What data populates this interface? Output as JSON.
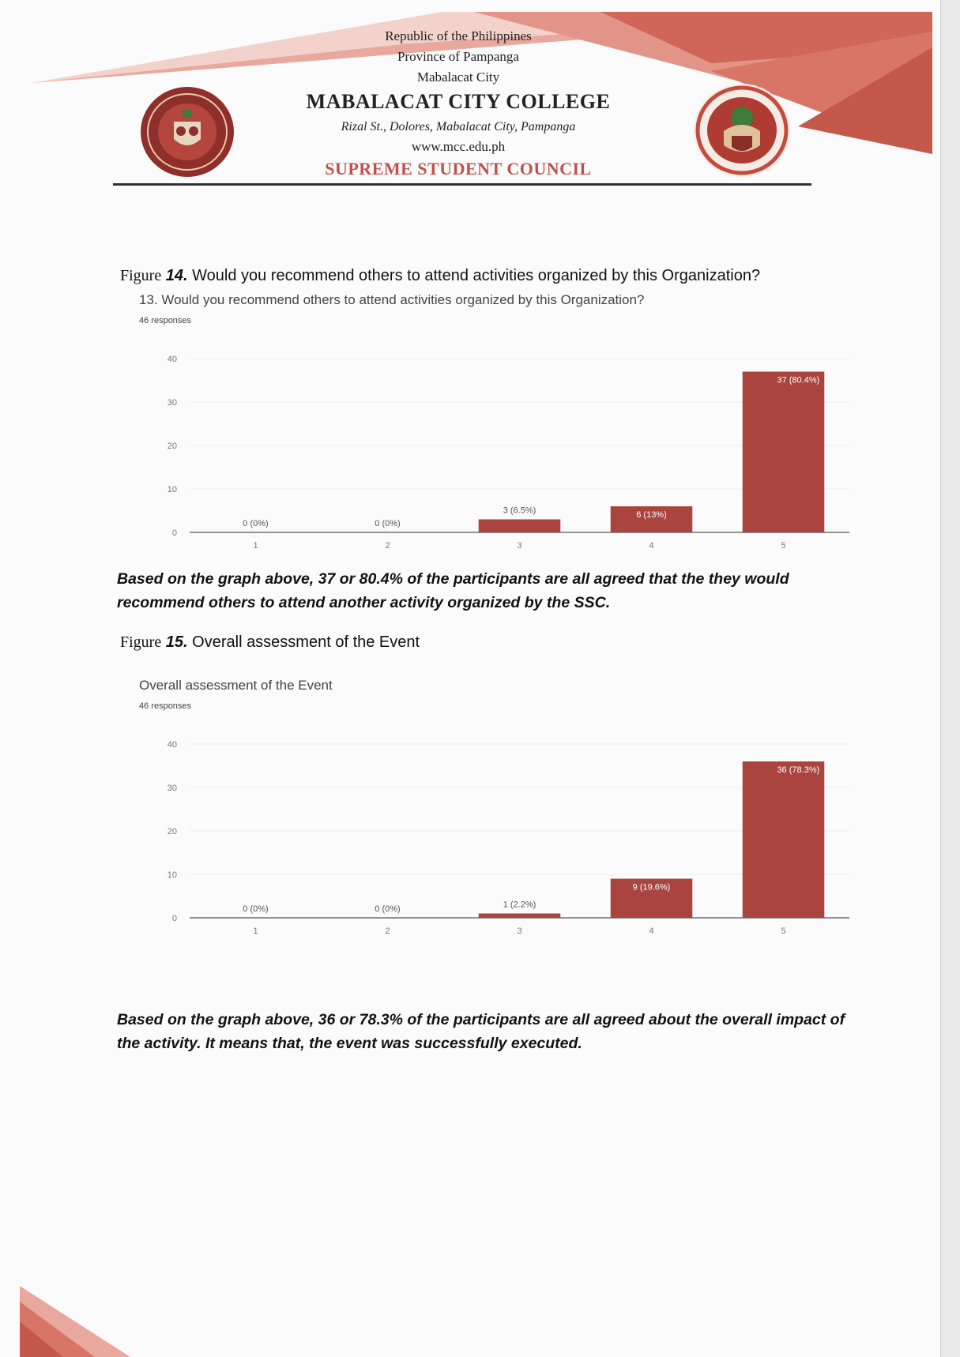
{
  "header": {
    "line1": "Republic of the Philippines",
    "line2": "Province of Pampanga",
    "line3": "Mabalacat City",
    "college": "MABALACAT CITY COLLEGE",
    "address": "Rizal St., Dolores, Mabalacat City, Pampanga",
    "website": "www.mcc.edu.ph",
    "council": "SUPREME STUDENT COUNCIL",
    "accent_color": "#c0504d",
    "logo_left_text": "MABALACAT CITY COLLEGE · PAMPANGA"
  },
  "figure14": {
    "caption_word": "Figure",
    "caption_num": "14.",
    "caption_text": "Would you recommend others to attend activities organized by this Organization?",
    "form_question": "13. Would you recommend others to attend activities organized by this Organization?",
    "responses": "46 responses",
    "conclusion": "Based on the graph above, 37 or 80.4% of the participants are all agreed that the they would recommend others to attend another activity organized by the SSC."
  },
  "figure15": {
    "caption_word": "Figure",
    "caption_num": "15.",
    "caption_text": "Overall assessment of the Event",
    "form_question": "Overall assessment of the Event",
    "responses": "46 responses",
    "conclusion": "Based on the graph above, 36 or 78.3% of the participants are all agreed about the overall impact of the activity. It means that, the event was successfully executed."
  },
  "chart_data": [
    {
      "type": "bar",
      "categories": [
        "1",
        "2",
        "3",
        "4",
        "5"
      ],
      "values": [
        0,
        0,
        3,
        6,
        37
      ],
      "data_labels": [
        "0 (0%)",
        "0 (0%)",
        "3 (6.5%)",
        "6 (13%)",
        "37 (80.4%)"
      ],
      "ylim": [
        0,
        40
      ],
      "yticks": [
        0,
        10,
        20,
        30,
        40
      ],
      "grid": true,
      "bar_color": "#a9443f"
    },
    {
      "type": "bar",
      "categories": [
        "1",
        "2",
        "3",
        "4",
        "5"
      ],
      "values": [
        0,
        0,
        1,
        9,
        36
      ],
      "data_labels": [
        "0 (0%)",
        "0 (0%)",
        "1 (2.2%)",
        "9 (19.6%)",
        "36 (78.3%)"
      ],
      "ylim": [
        0,
        40
      ],
      "yticks": [
        0,
        10,
        20,
        30,
        40
      ],
      "grid": true,
      "bar_color": "#a9443f"
    }
  ]
}
